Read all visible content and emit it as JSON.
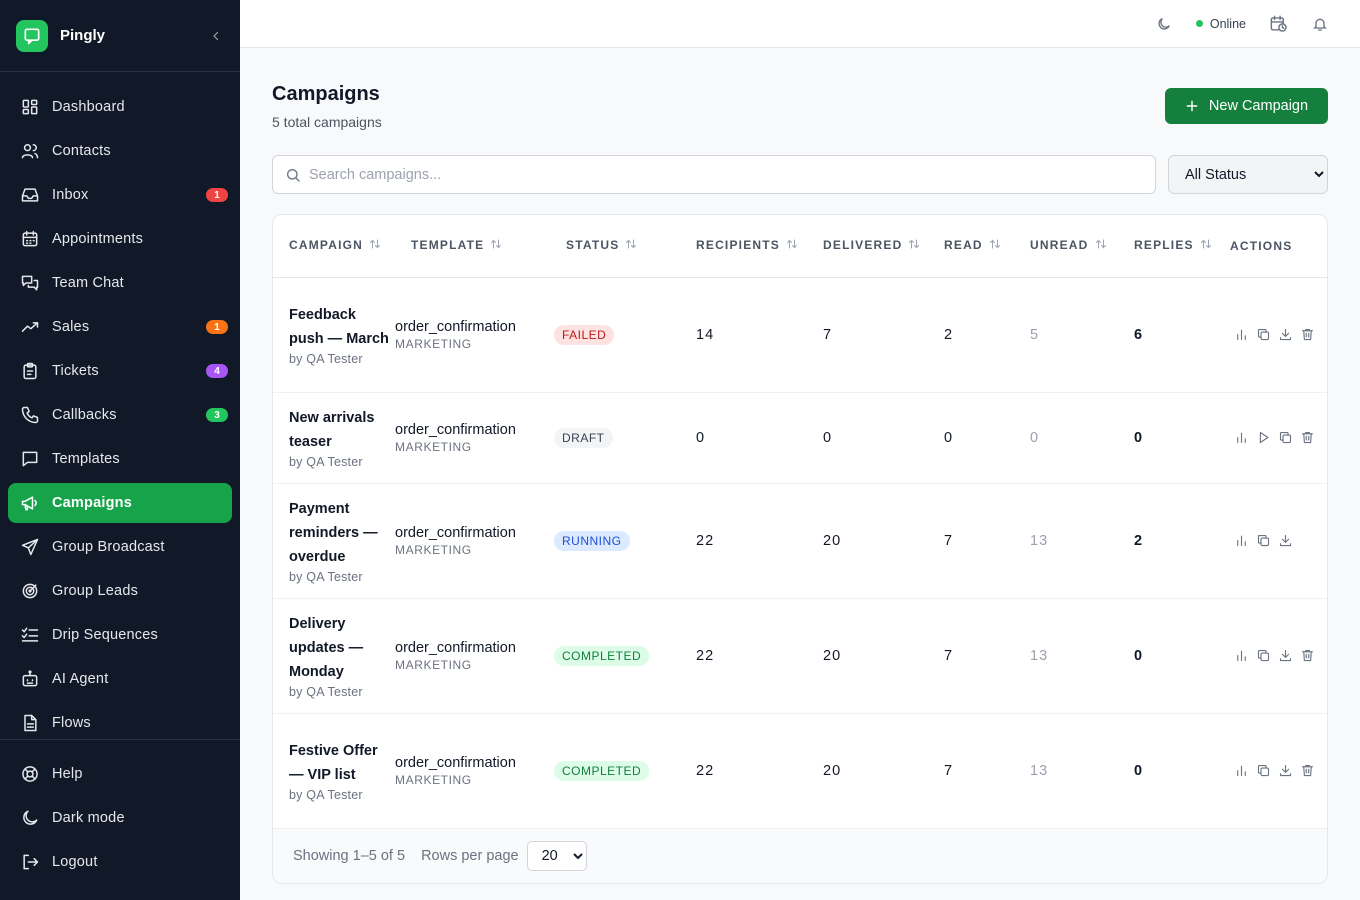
{
  "brand": {
    "name": "Pingly",
    "color": "#22c55e"
  },
  "sidebar": {
    "items": [
      {
        "label": "Dashboard",
        "icon": "grid-icon"
      },
      {
        "label": "Contacts",
        "icon": "users-icon"
      },
      {
        "label": "Inbox",
        "icon": "inbox-icon",
        "badge": "1",
        "badge_color": "#ef4444"
      },
      {
        "label": "Appointments",
        "icon": "calendar-icon"
      },
      {
        "label": "Team Chat",
        "icon": "chat-bubbles-icon"
      },
      {
        "label": "Sales",
        "icon": "trending-up-icon",
        "badge": "1",
        "badge_color": "#f97316"
      },
      {
        "label": "Tickets",
        "icon": "clipboard-icon",
        "badge": "4",
        "badge_color": "#a855f7"
      },
      {
        "label": "Callbacks",
        "icon": "phone-icon",
        "badge": "3",
        "badge_color": "#22c55e"
      },
      {
        "label": "Templates",
        "icon": "message-square-icon"
      },
      {
        "label": "Campaigns",
        "icon": "megaphone-icon",
        "active": true
      },
      {
        "label": "Group Broadcast",
        "icon": "send-icon"
      },
      {
        "label": "Group Leads",
        "icon": "target-icon"
      },
      {
        "label": "Drip Sequences",
        "icon": "list-checks-icon"
      },
      {
        "label": "AI Agent",
        "icon": "bot-icon"
      },
      {
        "label": "Flows",
        "icon": "file-icon"
      }
    ],
    "bottom": [
      {
        "label": "Help",
        "icon": "help-circle-icon"
      },
      {
        "label": "Dark mode",
        "icon": "moon-icon"
      },
      {
        "label": "Logout",
        "icon": "logout-icon"
      }
    ]
  },
  "topbar": {
    "status": "Online",
    "status_color": "#22c55e"
  },
  "page": {
    "title": "Campaigns",
    "subtitle": "5 total campaigns",
    "new_button": "New Campaign",
    "accent": "#15803d"
  },
  "search": {
    "placeholder": "Search campaigns...",
    "value": ""
  },
  "status_filter": {
    "selected": "All Status"
  },
  "table": {
    "headers": [
      "CAMPAIGN",
      "TEMPLATE",
      "STATUS",
      "RECIPIENTS",
      "DELIVERED",
      "READ",
      "UNREAD",
      "REPLIES",
      "ACTIONS"
    ],
    "rows": [
      {
        "name": "Feedback push — March",
        "by": "by QA Tester",
        "template": "order_confirmation",
        "category": "MARKETING",
        "status": "FAILED",
        "status_class": "failed",
        "recipients": "14",
        "delivered": "7",
        "read": "2",
        "unread": "5",
        "replies": "6",
        "actions": [
          "chart-icon",
          "copy-icon",
          "download-icon",
          "trash-icon"
        ]
      },
      {
        "name": "New arrivals teaser",
        "by": "by QA Tester",
        "template": "order_confirmation",
        "category": "MARKETING",
        "status": "DRAFT",
        "status_class": "draft",
        "recipients": "0",
        "delivered": "0",
        "read": "0",
        "unread": "0",
        "replies": "0",
        "actions": [
          "chart-icon",
          "play-icon",
          "copy-icon",
          "trash-icon"
        ]
      },
      {
        "name": "Payment reminders — overdue",
        "by": "by QA Tester",
        "template": "order_confirmation",
        "category": "MARKETING",
        "status": "RUNNING",
        "status_class": "running",
        "recipients": "22",
        "delivered": "20",
        "read": "7",
        "unread": "13",
        "replies": "2",
        "actions": [
          "chart-icon",
          "copy-icon",
          "download-icon"
        ]
      },
      {
        "name": "Delivery updates — Monday",
        "by": "by QA Tester",
        "template": "order_confirmation",
        "category": "MARKETING",
        "status": "COMPLETED",
        "status_class": "completed",
        "recipients": "22",
        "delivered": "20",
        "read": "7",
        "unread": "13",
        "replies": "0",
        "actions": [
          "chart-icon",
          "copy-icon",
          "download-icon",
          "trash-icon"
        ]
      },
      {
        "name": "Festive Offer — VIP list",
        "by": "by QA Tester",
        "template": "order_confirmation",
        "category": "MARKETING",
        "status": "COMPLETED",
        "status_class": "completed",
        "recipients": "22",
        "delivered": "20",
        "read": "7",
        "unread": "13",
        "replies": "0",
        "actions": [
          "chart-icon",
          "copy-icon",
          "download-icon",
          "trash-icon"
        ]
      }
    ]
  },
  "footer": {
    "showing": "Showing 1–5 of 5",
    "rows_label": "Rows per page",
    "rows_value": "20"
  }
}
